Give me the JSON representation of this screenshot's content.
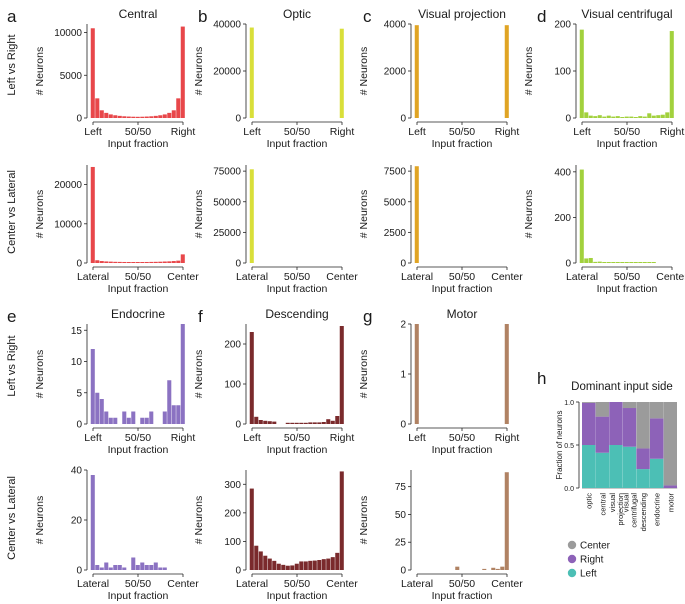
{
  "figure": {
    "row_labels": [
      "Left vs Right",
      "Center vs Lateral",
      "Left vs Right",
      "Center vs Lateral"
    ],
    "x_title": "Input fraction",
    "y_title": "# Neurons"
  },
  "chart_data": [
    {
      "panel": "a",
      "type": "bar",
      "title": "Central",
      "color": "#e8474a",
      "axis": "Left vs Right",
      "xticks": [
        "Left",
        "50/50",
        "Right"
      ],
      "ylabel": "# Neurons",
      "xlabel": "Input fraction",
      "ylim": [
        0,
        11000
      ],
      "yticks": [
        0,
        5000,
        10000
      ],
      "values": [
        10500,
        2300,
        900,
        600,
        420,
        320,
        250,
        200,
        170,
        150,
        140,
        150,
        170,
        200,
        250,
        320,
        420,
        600,
        900,
        2300,
        10700
      ]
    },
    {
      "panel": "b",
      "type": "bar",
      "title": "Optic",
      "color": "#d9df3a",
      "axis": "Left vs Right",
      "xticks": [
        "Left",
        "50/50",
        "Right"
      ],
      "ylabel": "# Neurons",
      "xlabel": "Input fraction",
      "ylim": [
        0,
        40000
      ],
      "yticks": [
        0,
        20000,
        40000
      ],
      "values": [
        38500,
        0,
        0,
        0,
        0,
        0,
        0,
        0,
        0,
        0,
        0,
        0,
        0,
        0,
        0,
        0,
        0,
        0,
        0,
        0,
        38000
      ]
    },
    {
      "panel": "c",
      "type": "bar",
      "title": "Visual projection",
      "color": "#e0a424",
      "axis": "Left vs Right",
      "xticks": [
        "Left",
        "50/50",
        "Right"
      ],
      "ylabel": "# Neurons",
      "xlabel": "Input fraction",
      "ylim": [
        0,
        4000
      ],
      "yticks": [
        0,
        2000,
        4000
      ],
      "values": [
        3950,
        0,
        0,
        0,
        0,
        0,
        0,
        0,
        0,
        0,
        0,
        0,
        0,
        0,
        0,
        0,
        0,
        0,
        0,
        0,
        3950
      ]
    },
    {
      "panel": "d",
      "type": "bar",
      "title": "Visual centrifugal",
      "color": "#a2d13d",
      "axis": "Left vs Right",
      "xticks": [
        "Left",
        "50/50",
        "Right"
      ],
      "ylabel": "# Neurons",
      "xlabel": "Input fraction",
      "ylim": [
        0,
        200
      ],
      "yticks": [
        0,
        100,
        200
      ],
      "values": [
        188,
        12,
        5,
        4,
        6,
        3,
        5,
        3,
        4,
        2,
        3,
        3,
        2,
        4,
        3,
        10,
        5,
        6,
        7,
        12,
        185
      ]
    },
    {
      "panel": "a2",
      "type": "bar",
      "title": "",
      "color": "#e8474a",
      "axis": "Center vs Lateral",
      "xticks": [
        "Lateral",
        "50/50",
        "Center"
      ],
      "ylabel": "# Neurons",
      "xlabel": "Input fraction",
      "ylim": [
        0,
        25000
      ],
      "yticks": [
        0,
        10000,
        20000
      ],
      "values": [
        24500,
        700,
        500,
        400,
        350,
        300,
        280,
        260,
        250,
        240,
        240,
        250,
        260,
        280,
        300,
        330,
        380,
        420,
        500,
        600,
        2200
      ]
    },
    {
      "panel": "b2",
      "type": "bar",
      "title": "",
      "color": "#d9df3a",
      "axis": "Center vs Lateral",
      "xticks": [
        "Lateral",
        "50/50",
        "Center"
      ],
      "ylabel": "# Neurons",
      "xlabel": "Input fraction",
      "ylim": [
        0,
        80000
      ],
      "yticks": [
        0,
        25000,
        50000,
        75000
      ],
      "values": [
        76500,
        0,
        0,
        0,
        0,
        0,
        0,
        0,
        0,
        0,
        0,
        0,
        0,
        0,
        0,
        0,
        0,
        0,
        0,
        0,
        0
      ]
    },
    {
      "panel": "c2",
      "type": "bar",
      "title": "",
      "color": "#e0a424",
      "axis": "Center vs Lateral",
      "xticks": [
        "Lateral",
        "50/50",
        "Center"
      ],
      "ylabel": "# Neurons",
      "xlabel": "Input fraction",
      "ylim": [
        0,
        8000
      ],
      "yticks": [
        0,
        2500,
        5000,
        7500
      ],
      "values": [
        7900,
        0,
        0,
        0,
        0,
        0,
        0,
        0,
        0,
        0,
        0,
        0,
        0,
        0,
        0,
        0,
        0,
        0,
        0,
        0,
        0
      ]
    },
    {
      "panel": "d2",
      "type": "bar",
      "title": "",
      "color": "#a2d13d",
      "axis": "Center vs Lateral",
      "xticks": [
        "Lateral",
        "50/50",
        "Center"
      ],
      "ylabel": "# Neurons",
      "xlabel": "Input fraction",
      "ylim": [
        0,
        430
      ],
      "yticks": [
        0,
        200,
        400
      ],
      "values": [
        410,
        20,
        22,
        5,
        6,
        4,
        3,
        3,
        4,
        2,
        2,
        3,
        2,
        2,
        1,
        2,
        1,
        0,
        0,
        0,
        0
      ]
    },
    {
      "panel": "e",
      "type": "bar",
      "title": "Endocrine",
      "color": "#8b72c2",
      "axis": "Left vs Right",
      "xticks": [
        "Left",
        "50/50",
        "Right"
      ],
      "ylabel": "# Neurons",
      "xlabel": "Input fraction",
      "ylim": [
        0,
        16
      ],
      "yticks": [
        0,
        5,
        10,
        15
      ],
      "values": [
        12,
        5,
        4,
        2,
        1,
        1,
        0,
        2,
        1,
        2,
        0,
        1,
        1,
        2,
        0,
        0,
        2,
        7,
        3,
        3,
        16
      ]
    },
    {
      "panel": "f",
      "type": "bar",
      "title": "Descending",
      "color": "#7a2a2c",
      "axis": "Left vs Right",
      "xticks": [
        "Left",
        "50/50",
        "Right"
      ],
      "ylabel": "# Neurons",
      "xlabel": "Input fraction",
      "ylim": [
        0,
        250
      ],
      "yticks": [
        0,
        100,
        200
      ],
      "values": [
        230,
        18,
        10,
        8,
        7,
        6,
        0,
        0,
        3,
        3,
        3,
        3,
        3,
        4,
        4,
        4,
        5,
        12,
        8,
        20,
        245
      ]
    },
    {
      "panel": "g",
      "type": "bar",
      "title": "Motor",
      "color": "#b08263",
      "axis": "Left vs Right",
      "xticks": [
        "Left",
        "50/50",
        "Right"
      ],
      "ylabel": "# Neurons",
      "xlabel": "Input fraction",
      "ylim": [
        0,
        2
      ],
      "yticks": [
        0,
        1,
        2
      ],
      "values": [
        2,
        0,
        0,
        0,
        0,
        0,
        0,
        0,
        0,
        0,
        0,
        0,
        0,
        0,
        0,
        0,
        0,
        0,
        0,
        0,
        2
      ]
    },
    {
      "panel": "e2",
      "type": "bar",
      "title": "",
      "color": "#8b72c2",
      "axis": "Center vs Lateral",
      "xticks": [
        "Lateral",
        "50/50",
        "Center"
      ],
      "ylabel": "# Neurons",
      "xlabel": "Input fraction",
      "ylim": [
        0,
        40
      ],
      "yticks": [
        0,
        20,
        40
      ],
      "values": [
        38,
        2,
        1,
        3,
        1,
        2,
        2,
        1,
        0,
        5,
        2,
        3,
        2,
        2,
        3,
        1,
        1,
        0,
        0,
        0,
        0
      ]
    },
    {
      "panel": "f2",
      "type": "bar",
      "title": "",
      "color": "#7a2a2c",
      "axis": "Center vs Lateral",
      "xticks": [
        "Lateral",
        "50/50",
        "Center"
      ],
      "ylabel": "# Neurons",
      "xlabel": "Input fraction",
      "ylim": [
        0,
        350
      ],
      "yticks": [
        0,
        100,
        200,
        300
      ],
      "values": [
        285,
        85,
        65,
        50,
        40,
        32,
        22,
        18,
        15,
        16,
        22,
        30,
        30,
        32,
        33,
        35,
        38,
        40,
        45,
        60,
        345
      ]
    },
    {
      "panel": "g2",
      "type": "bar",
      "title": "",
      "color": "#b08263",
      "axis": "Center vs Lateral",
      "xticks": [
        "Lateral",
        "50/50",
        "Center"
      ],
      "ylabel": "# Neurons",
      "xlabel": "Input fraction",
      "ylim": [
        0,
        90
      ],
      "yticks": [
        0,
        25,
        50,
        75
      ],
      "values": [
        0,
        0,
        0,
        0,
        0,
        0,
        0,
        0,
        0,
        3,
        0,
        0,
        0,
        0,
        0,
        1,
        0,
        2,
        1,
        3,
        88
      ]
    },
    {
      "panel": "h",
      "type": "stacked-bar",
      "title": "Dominant input side",
      "ylabel": "Fraction of neurons",
      "ylim": [
        0,
        1
      ],
      "yticks": [
        "0.0",
        "0.5",
        "1.0"
      ],
      "categories": [
        "optic",
        "central",
        "visual projection",
        "visual centrifugal",
        "descending",
        "endocrine",
        "motor"
      ],
      "series": [
        {
          "name": "Left",
          "color": "#4cbfb5",
          "values": [
            0.5,
            0.41,
            0.5,
            0.48,
            0.22,
            0.34,
            0.0
          ]
        },
        {
          "name": "Right",
          "color": "#8d62b8",
          "values": [
            0.49,
            0.42,
            0.5,
            0.45,
            0.24,
            0.47,
            0.03
          ]
        },
        {
          "name": "Center",
          "color": "#9b9b9b",
          "values": [
            0.01,
            0.17,
            0.0,
            0.07,
            0.54,
            0.19,
            0.97
          ]
        }
      ],
      "legend": [
        "Center",
        "Right",
        "Left"
      ]
    }
  ]
}
